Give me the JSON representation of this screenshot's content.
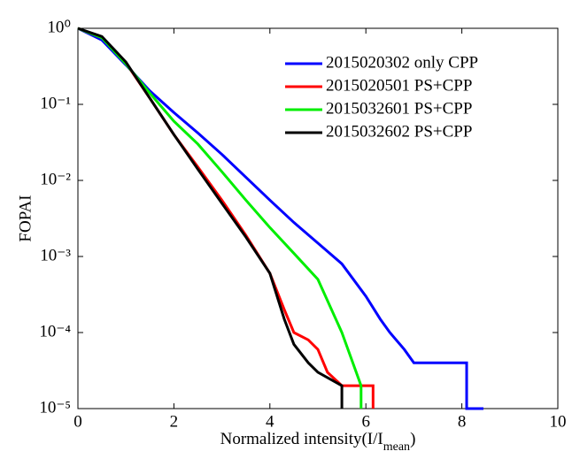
{
  "chart_data": {
    "type": "line",
    "y_label": "FOPAI",
    "x_label": [
      "Normalized intensity(I/I",
      "mean",
      ")"
    ],
    "xlim": [
      0,
      10
    ],
    "xticks": [
      0,
      2,
      4,
      6,
      8,
      10
    ],
    "ylim": [
      1e-05,
      1
    ],
    "log_y": true,
    "yticks": [
      {
        "value": 1,
        "label": "10⁰"
      },
      {
        "value": 0.1,
        "label": "10⁻¹"
      },
      {
        "value": 0.01,
        "label": "10⁻²"
      },
      {
        "value": 0.001,
        "label": "10⁻³"
      },
      {
        "value": 0.0001,
        "label": "10⁻⁴"
      },
      {
        "value": 1e-05,
        "label": "10⁻⁵"
      }
    ],
    "legend": "upper right",
    "series": [
      {
        "name": "2015020302 only CPP",
        "color": "#0000ff",
        "x": [
          0,
          0.5,
          1,
          1.5,
          2,
          2.5,
          3,
          3.5,
          4,
          4.5,
          5,
          5.5,
          6,
          6.3,
          6.5,
          6.8,
          7,
          7.5,
          8.1,
          8.1,
          8.45
        ],
        "values": [
          1,
          0.7,
          0.33,
          0.15,
          0.078,
          0.042,
          0.022,
          0.011,
          0.0055,
          0.0028,
          0.0015,
          0.0008,
          0.0003,
          0.00015,
          0.0001,
          6e-05,
          4e-05,
          4e-05,
          4e-05,
          1e-05,
          1e-05
        ]
      },
      {
        "name": "2015020501 PS+CPP",
        "color": "#ff0000",
        "x": [
          0,
          0.5,
          1,
          1.5,
          2,
          2.5,
          3,
          3.5,
          4,
          4.3,
          4.5,
          4.8,
          5,
          5.2,
          5.5,
          5.7,
          6.15,
          6.15
        ],
        "values": [
          1,
          0.75,
          0.35,
          0.12,
          0.04,
          0.015,
          0.0055,
          0.0019,
          0.0006,
          0.0002,
          0.0001,
          8e-05,
          6e-05,
          3e-05,
          2e-05,
          2e-05,
          2e-05,
          1e-05
        ]
      },
      {
        "name": "2015032601 PS+CPP",
        "color": "#00ee00",
        "x": [
          0,
          0.5,
          1,
          1.5,
          2,
          2.5,
          3,
          3.5,
          4,
          4.5,
          5,
          5.5,
          5.8,
          5.9,
          5.9
        ],
        "values": [
          1,
          0.75,
          0.34,
          0.14,
          0.06,
          0.03,
          0.013,
          0.0055,
          0.0024,
          0.0011,
          0.0005,
          0.0001,
          3e-05,
          2e-05,
          1e-05
        ]
      },
      {
        "name": "2015032602 PS+CPP",
        "color": "#000000",
        "x": [
          0,
          0.5,
          1,
          1.5,
          2,
          2.5,
          3,
          3.5,
          4,
          4.3,
          4.5,
          4.8,
          5,
          5.5,
          5.5
        ],
        "values": [
          1,
          0.78,
          0.36,
          0.12,
          0.04,
          0.014,
          0.005,
          0.0018,
          0.0006,
          0.00015,
          7e-05,
          4e-05,
          3e-05,
          2e-05,
          1e-05
        ]
      }
    ]
  }
}
